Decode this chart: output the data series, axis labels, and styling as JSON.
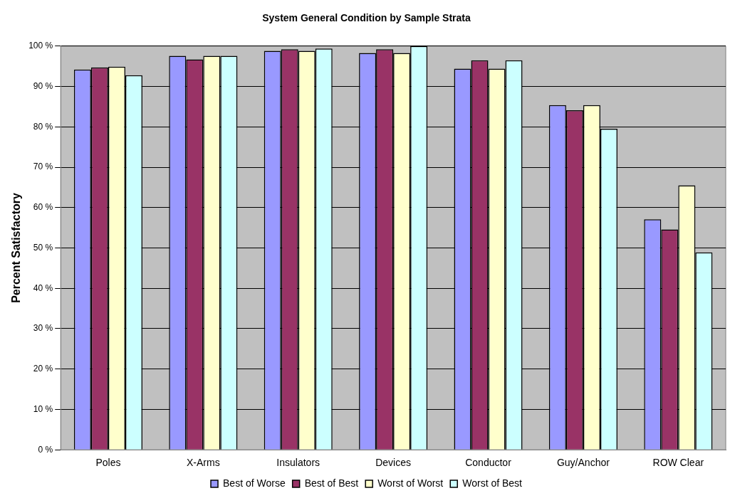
{
  "chart_data": {
    "type": "bar",
    "title": "System General Condition by Sample Strata",
    "ylabel": "Percent Satisfactory",
    "categories": [
      "Poles",
      "X-Arms",
      "Insulators",
      "Devices",
      "Conductor",
      "Guy/Anchor",
      "ROW Clear"
    ],
    "series": [
      {
        "name": "Best of Worse",
        "color": "#9999ff",
        "values": [
          94.2,
          97.6,
          98.8,
          98.3,
          94.4,
          85.4,
          57.1
        ]
      },
      {
        "name": "Best of Best",
        "color": "#993366",
        "values": [
          94.7,
          96.7,
          99.2,
          99.2,
          96.5,
          84.1,
          54.6
        ]
      },
      {
        "name": "Worst of Worst",
        "color": "#ffffcc",
        "values": [
          94.9,
          97.6,
          98.8,
          98.3,
          94.4,
          85.4,
          65.5
        ]
      },
      {
        "name": "Worst of Best",
        "color": "#ccffff",
        "values": [
          92.8,
          97.6,
          99.4,
          100,
          96.5,
          79.5,
          48.9
        ]
      }
    ],
    "ylim": [
      0,
      100
    ],
    "yticks": [
      {
        "value": 0,
        "label": "0 %"
      },
      {
        "value": 10,
        "label": "10 %"
      },
      {
        "value": 20,
        "label": "20 %"
      },
      {
        "value": 30,
        "label": "30 %"
      },
      {
        "value": 40,
        "label": "40 %"
      },
      {
        "value": 50,
        "label": "50 %"
      },
      {
        "value": 60,
        "label": "60 %"
      },
      {
        "value": 70,
        "label": "70 %"
      },
      {
        "value": 80,
        "label": "80 %"
      },
      {
        "value": 90,
        "label": "90 %"
      },
      {
        "value": 100,
        "label": "100 %"
      }
    ],
    "grid": "y",
    "legend": "bottom"
  }
}
